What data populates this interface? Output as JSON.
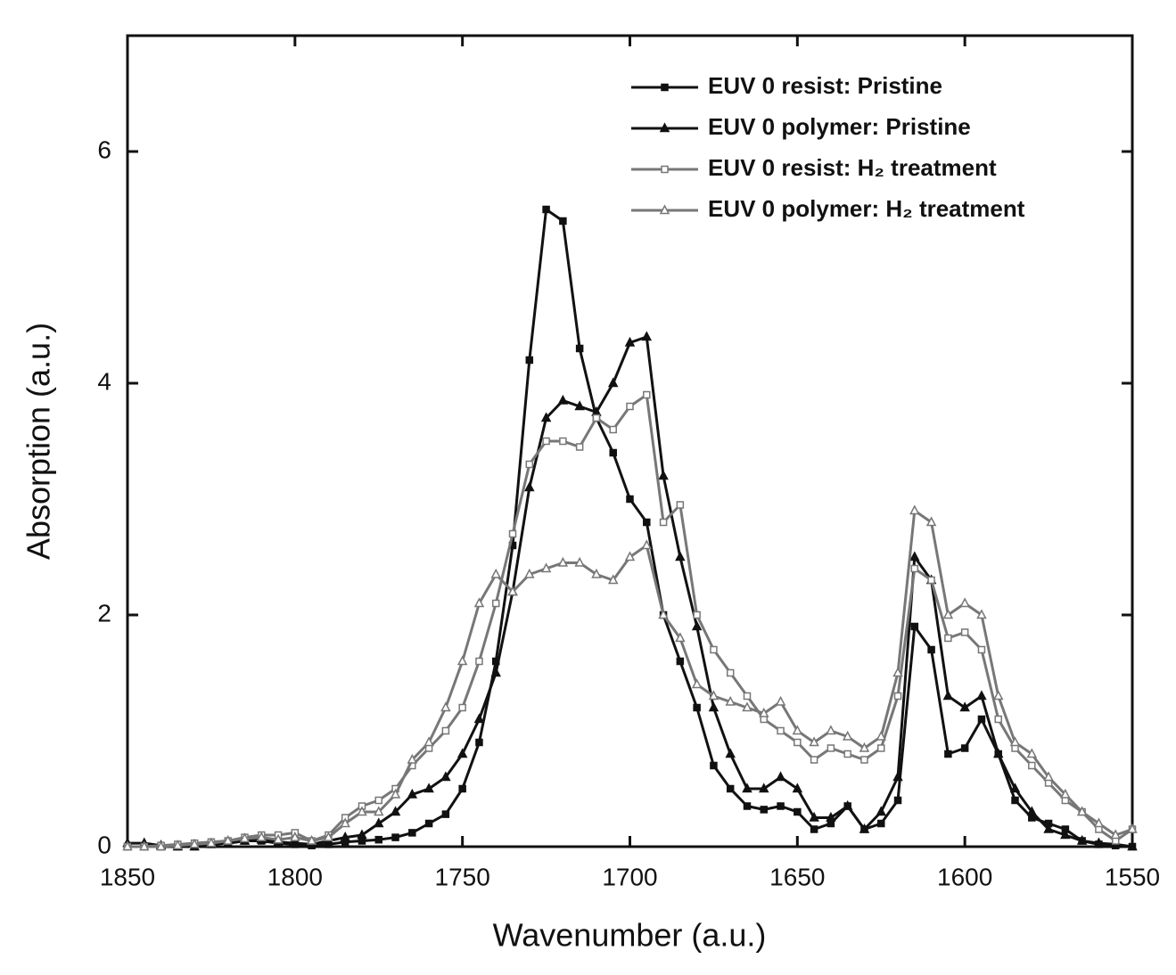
{
  "chart_data": {
    "type": "line",
    "x_label": "Wavenumber (a.u.)",
    "y_label": "Absorption (a.u.)",
    "xlim": [
      1850,
      1550
    ],
    "xticks": [
      1850,
      1800,
      1750,
      1700,
      1650,
      1600,
      1550
    ],
    "ylim": [
      0,
      7
    ],
    "yticks": [
      0,
      2,
      4,
      6
    ],
    "legend": "upper right",
    "x": [
      1850,
      1845,
      1840,
      1835,
      1830,
      1825,
      1820,
      1815,
      1810,
      1805,
      1800,
      1795,
      1790,
      1785,
      1780,
      1775,
      1770,
      1765,
      1760,
      1755,
      1750,
      1745,
      1740,
      1735,
      1730,
      1725,
      1720,
      1715,
      1710,
      1705,
      1700,
      1695,
      1690,
      1685,
      1680,
      1675,
      1670,
      1665,
      1660,
      1655,
      1650,
      1645,
      1640,
      1635,
      1630,
      1625,
      1620,
      1615,
      1610,
      1605,
      1600,
      1595,
      1590,
      1585,
      1580,
      1575,
      1570,
      1565,
      1560,
      1555,
      1550
    ],
    "series": [
      {
        "name": "EUV 0 resist: Pristine",
        "color": "#111111",
        "marker": "square",
        "filled": true,
        "values": [
          0,
          0,
          0,
          0,
          0,
          0.02,
          0.03,
          0.05,
          0.05,
          0.03,
          0.02,
          0.01,
          0.02,
          0.04,
          0.05,
          0.06,
          0.08,
          0.12,
          0.2,
          0.28,
          0.5,
          0.9,
          1.6,
          2.6,
          4.2,
          5.5,
          5.4,
          4.3,
          3.7,
          3.4,
          3.0,
          2.8,
          2.0,
          1.6,
          1.2,
          0.7,
          0.5,
          0.35,
          0.32,
          0.35,
          0.3,
          0.15,
          0.2,
          0.35,
          0.15,
          0.2,
          0.4,
          1.9,
          1.7,
          0.8,
          0.85,
          1.1,
          0.8,
          0.4,
          0.25,
          0.2,
          0.15,
          0.05,
          0.02,
          0.01,
          0
        ]
      },
      {
        "name": "EUV 0 polymer: Pristine",
        "color": "#111111",
        "marker": "triangle",
        "filled": true,
        "values": [
          0.03,
          0.03,
          0.01,
          0,
          0,
          0.02,
          0.03,
          0.05,
          0.06,
          0.04,
          0.03,
          0.02,
          0.05,
          0.08,
          0.1,
          0.2,
          0.3,
          0.45,
          0.5,
          0.6,
          0.8,
          1.1,
          1.5,
          2.2,
          3.1,
          3.7,
          3.85,
          3.8,
          3.75,
          4.0,
          4.35,
          4.4,
          3.2,
          2.5,
          1.9,
          1.2,
          0.8,
          0.5,
          0.5,
          0.6,
          0.5,
          0.25,
          0.25,
          0.35,
          0.15,
          0.3,
          0.6,
          2.5,
          2.3,
          1.3,
          1.2,
          1.3,
          0.8,
          0.5,
          0.3,
          0.15,
          0.1,
          0.05,
          0.03,
          0.02,
          0
        ]
      },
      {
        "name": "EUV 0 resist: H₂ treatment",
        "color": "#777777",
        "marker": "square",
        "filled": false,
        "values": [
          0,
          0,
          0.01,
          0.02,
          0.03,
          0.04,
          0.05,
          0.08,
          0.1,
          0.1,
          0.12,
          0.05,
          0.1,
          0.25,
          0.35,
          0.4,
          0.5,
          0.7,
          0.85,
          1.0,
          1.2,
          1.6,
          2.1,
          2.7,
          3.3,
          3.5,
          3.5,
          3.45,
          3.7,
          3.6,
          3.8,
          3.9,
          2.8,
          2.95,
          2.0,
          1.7,
          1.5,
          1.3,
          1.1,
          1.0,
          0.9,
          0.75,
          0.85,
          0.8,
          0.75,
          0.85,
          1.3,
          2.4,
          2.3,
          1.8,
          1.85,
          1.7,
          1.1,
          0.85,
          0.7,
          0.55,
          0.4,
          0.3,
          0.15,
          0.05,
          0.15
        ]
      },
      {
        "name": "EUV 0 polymer: H₂ treatment",
        "color": "#777777",
        "marker": "triangle",
        "filled": false,
        "values": [
          0,
          0,
          0,
          0.01,
          0.02,
          0.03,
          0.05,
          0.07,
          0.08,
          0.06,
          0.08,
          0.05,
          0.08,
          0.2,
          0.3,
          0.3,
          0.45,
          0.75,
          0.9,
          1.2,
          1.6,
          2.1,
          2.35,
          2.2,
          2.35,
          2.4,
          2.45,
          2.45,
          2.35,
          2.3,
          2.5,
          2.6,
          2.0,
          1.8,
          1.4,
          1.3,
          1.25,
          1.2,
          1.15,
          1.25,
          1.0,
          0.9,
          1.0,
          0.95,
          0.85,
          0.95,
          1.5,
          2.9,
          2.8,
          2.0,
          2.1,
          2.0,
          1.3,
          0.9,
          0.8,
          0.6,
          0.45,
          0.3,
          0.2,
          0.1,
          0.15
        ]
      }
    ]
  }
}
